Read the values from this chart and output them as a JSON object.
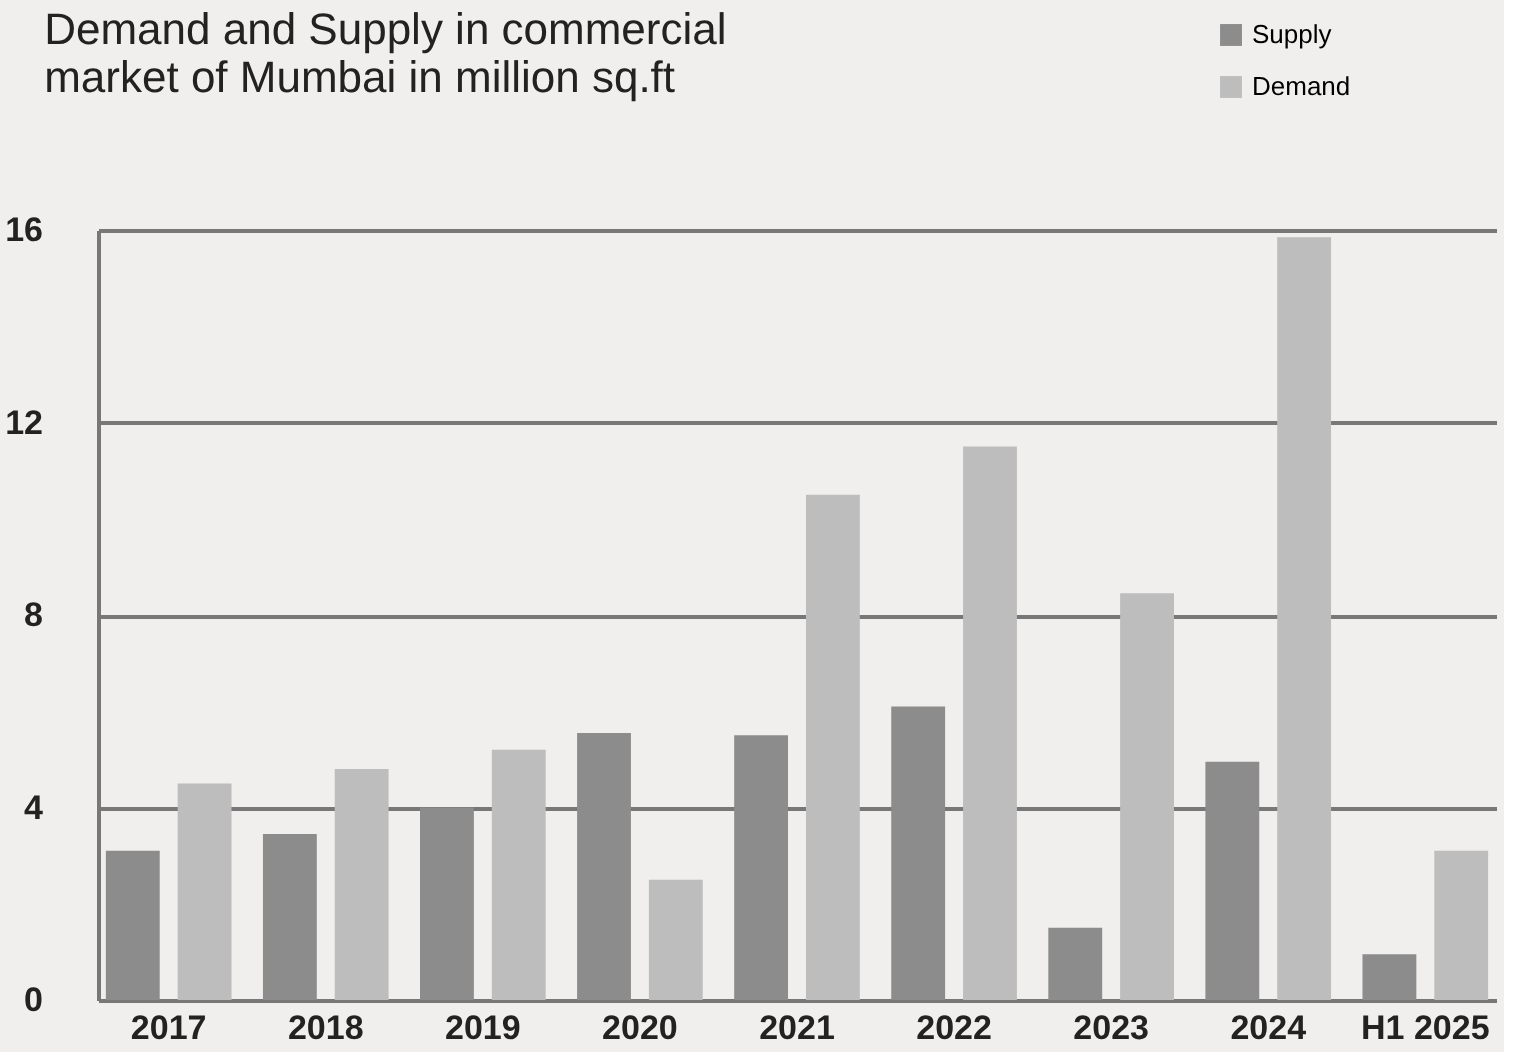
{
  "chart_data": {
    "type": "bar",
    "title": "Demand and Supply in commercial\nmarket of Mumbai in million sq.ft",
    "categories": [
      "2017",
      "2018",
      "2019",
      "2020",
      "2021",
      "2022",
      "2023",
      "2024",
      "H1 2025"
    ],
    "series": [
      {
        "name": "Supply",
        "color": "#8c8c8c",
        "values": [
          3.1,
          3.45,
          4.0,
          5.55,
          5.5,
          6.1,
          1.5,
          4.95,
          0.95
        ]
      },
      {
        "name": "Demand",
        "color": "#bdbdbd",
        "values": [
          4.5,
          4.8,
          5.2,
          2.5,
          10.5,
          11.5,
          8.45,
          15.85,
          3.1
        ]
      }
    ],
    "ylim": [
      0,
      16
    ],
    "yticks": [
      0,
      4,
      8,
      12,
      16
    ],
    "grid": "y",
    "legend": "top right"
  }
}
